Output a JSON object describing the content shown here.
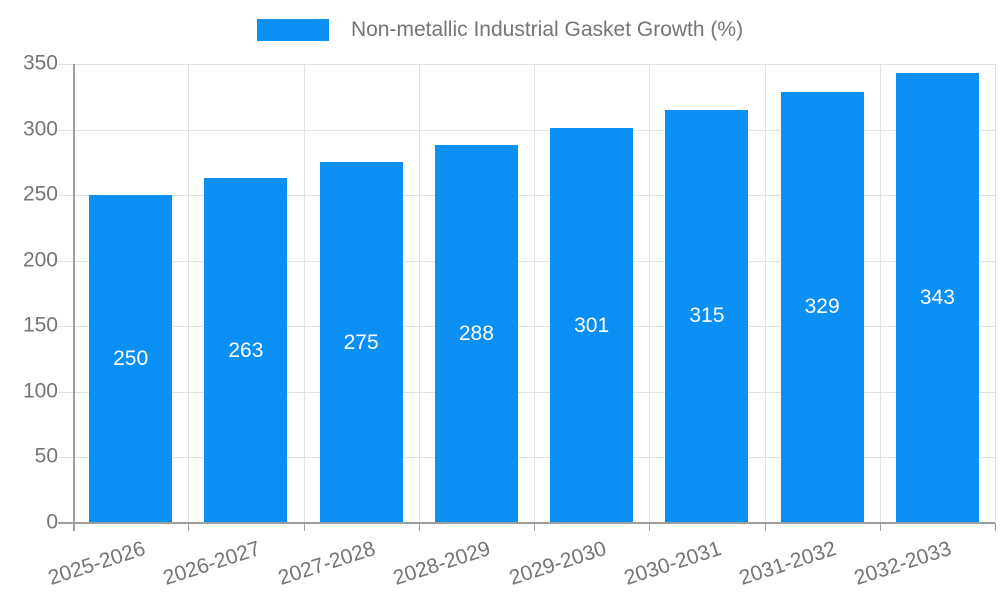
{
  "chart_data": {
    "type": "bar",
    "title": "",
    "legend": "Non-metallic Industrial Gasket Growth (%)",
    "legend_position": "top",
    "categories": [
      "2025-2026",
      "2026-2027",
      "2027-2028",
      "2028-2029",
      "2029-2030",
      "2030-2031",
      "2031-2032",
      "2032-2033"
    ],
    "values": [
      250,
      263,
      275,
      288,
      301,
      315,
      329,
      343
    ],
    "xlabel": "",
    "ylabel": "",
    "ylim": [
      0,
      350
    ],
    "ytick_step": 50,
    "grid": true,
    "colors": {
      "bar": "#0a90f5",
      "value_label": "#ffffff",
      "grid": "#e2e2e2",
      "axis": "#9e9e9e",
      "text": "#757575",
      "background": "#ffffff"
    }
  }
}
